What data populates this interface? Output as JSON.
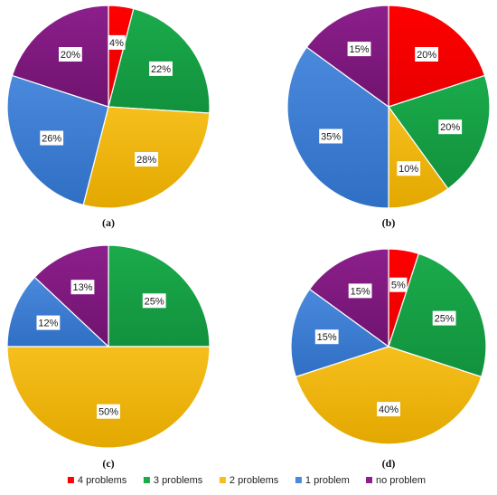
{
  "chart_data": [
    {
      "type": "pie",
      "panel_label": "(a)",
      "categories": [
        "4 problems",
        "3 problems",
        "2 problems",
        "1 problem",
        "no problem"
      ],
      "values": [
        4,
        22,
        28,
        26,
        20
      ],
      "labels": [
        "4%",
        "22%",
        "28%",
        "26%",
        "20%"
      ]
    },
    {
      "type": "pie",
      "panel_label": "(b)",
      "categories": [
        "4 problems",
        "3 problems",
        "2 problems",
        "1 problem",
        "no problem"
      ],
      "values": [
        20,
        20,
        10,
        35,
        15
      ],
      "labels": [
        "20%",
        "20%",
        "10%",
        "35%",
        "15%"
      ]
    },
    {
      "type": "pie",
      "panel_label": "(c)",
      "categories": [
        "4 problems",
        "3 problems",
        "2 problems",
        "1 problem",
        "no problem"
      ],
      "values": [
        0,
        25,
        50,
        12,
        13
      ],
      "labels": [
        "",
        "25%",
        "50%",
        "12%",
        "13%"
      ]
    },
    {
      "type": "pie",
      "panel_label": "(d)",
      "categories": [
        "4 problems",
        "3 problems",
        "2 problems",
        "1 problem",
        "no problem"
      ],
      "values": [
        5,
        25,
        40,
        15,
        15
      ],
      "labels": [
        "5%",
        "25%",
        "40%",
        "15%",
        "15%"
      ]
    }
  ],
  "legend": {
    "placement": "bottom-center",
    "items": [
      {
        "label": "4 problems",
        "color": "#ff0000"
      },
      {
        "label": "3 problems",
        "color": "#1aab4b"
      },
      {
        "label": "2 problems",
        "color": "#f6bf1d"
      },
      {
        "label": "1 problem",
        "color": "#4a89dc"
      },
      {
        "label": "no problem",
        "color": "#8c1f8c"
      }
    ]
  },
  "gradient_dark": {
    "#ff0000": "#e80000",
    "#1aab4b": "#12913d",
    "#f6bf1d": "#e3a800",
    "#4a89dc": "#2f6fc4",
    "#8c1f8c": "#6f136f"
  }
}
